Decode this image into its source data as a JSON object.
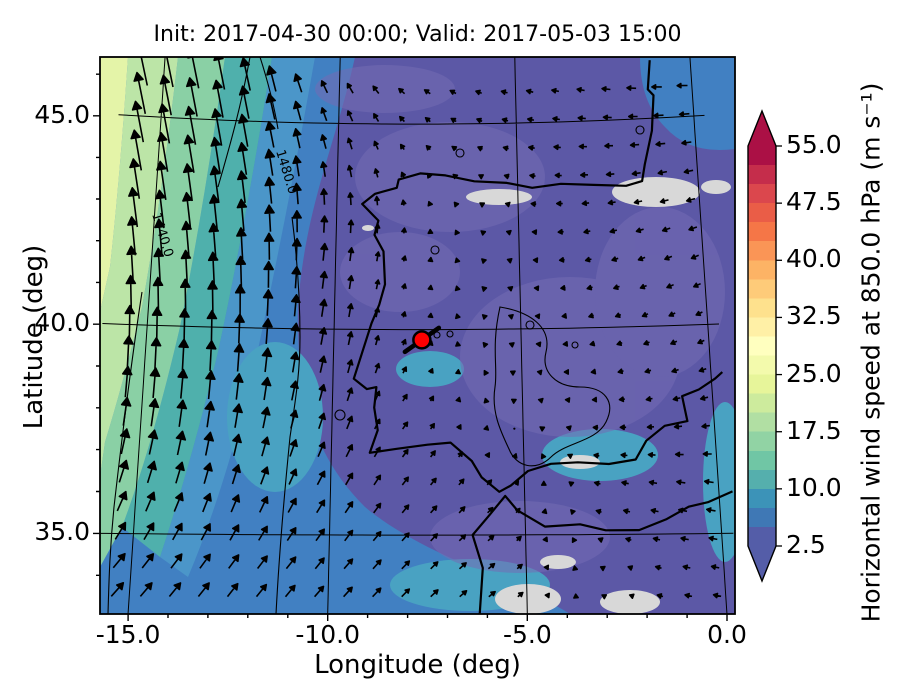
{
  "title": "Init: 2017-04-30 00:00; Valid: 2017-05-03 15:00",
  "axes": {
    "xlabel": "Longitude (deg)",
    "ylabel": "Latitude (deg)",
    "x_tick_labels": [
      "-15.0",
      "-10.0",
      "-5.0",
      "0.0"
    ],
    "x_tick_values": [
      -15.0,
      -10.0,
      -5.0,
      0.0
    ],
    "y_tick_labels": [
      "45.0",
      "40.0",
      "35.0"
    ],
    "y_tick_values": [
      45.0,
      40.0,
      35.0
    ]
  },
  "colorbar": {
    "label": "Horizontal wind speed at 850.0 hPa (m s⁻¹)",
    "tick_labels": [
      "55.0",
      "47.5",
      "40.0",
      "32.5",
      "25.0",
      "17.5",
      "10.0",
      "2.5"
    ],
    "tick_values": [
      55.0,
      47.5,
      40.0,
      32.5,
      25.0,
      17.5,
      10.0,
      2.5
    ],
    "min": 2.5,
    "max": 55.0,
    "palette": [
      "#5e4fa2",
      "#3288bd",
      "#66c2a5",
      "#abdda4",
      "#e6f598",
      "#ffffbf",
      "#fee08b",
      "#fdae61",
      "#f46d43",
      "#d53e4f",
      "#9e0142"
    ]
  },
  "map": {
    "contour_labels": [
      "1440.0",
      "1480.0"
    ],
    "marker": {
      "lon": -7.65,
      "lat": 39.75,
      "color": "#ff0000"
    },
    "colors": {
      "base": "#5c58a6",
      "slate_light": "#746cb4",
      "blue": "#4180c2",
      "blue_light": "#4b96c9",
      "teal": "#4fb0ac",
      "teal_blue": "#49a2c2",
      "green": "#8ad0a5",
      "green_pale": "#bce5a7",
      "yellow_pale": "#e4f4a8",
      "grey": "#d8d8d8",
      "line": "#000000",
      "marker_red": "#ff0000"
    }
  },
  "chart_data": {
    "type": "heatmap",
    "title": "Init: 2017-04-30 00:00; Valid: 2017-05-03 15:00",
    "xlabel": "Longitude (deg)",
    "ylabel": "Latitude (deg)",
    "xlim": [
      -15.7,
      0.2
    ],
    "ylim": [
      33.1,
      46.3
    ],
    "x_ticks": [
      -15.0,
      -10.0,
      -5.0,
      0.0
    ],
    "y_ticks": [
      35.0,
      40.0,
      45.0
    ],
    "colorbar_label": "Horizontal wind speed at 850.0 hPa (m s⁻¹)",
    "colorbar_ticks": [
      2.5,
      10.0,
      17.5,
      25.0,
      32.5,
      40.0,
      47.5,
      55.0
    ],
    "speed_levels_step": 2.5,
    "geopotential_contour_labels": [
      1440.0,
      1480.0
    ],
    "marker_point": {
      "lon": -7.65,
      "lat": 39.75
    },
    "wind_grid": {
      "units": "m s⁻¹",
      "lons": [
        -15.5,
        -13.0,
        -10.5,
        -8.0,
        -5.5,
        -3.0,
        -0.5
      ],
      "lats": [
        34.0,
        36.0,
        38.0,
        40.0,
        42.0,
        44.0,
        46.0
      ],
      "u": [
        [
          8,
          7,
          6,
          5,
          4,
          -2,
          -5
        ],
        [
          5,
          4,
          5,
          4,
          3,
          -4,
          -6
        ],
        [
          2,
          2,
          3,
          3,
          -1,
          -3,
          -5
        ],
        [
          0,
          0,
          2,
          1,
          -2,
          -3,
          -4
        ],
        [
          -3,
          -2,
          1,
          1,
          -2,
          -4,
          -5
        ],
        [
          -5,
          -4,
          -2,
          -2,
          -3,
          -5,
          -6
        ],
        [
          -6,
          -5,
          -4,
          -4,
          -4,
          -5,
          -7
        ]
      ],
      "v": [
        [
          9,
          9,
          7,
          5,
          3,
          1,
          1
        ],
        [
          14,
          13,
          9,
          5,
          3,
          1,
          1
        ],
        [
          20,
          18,
          11,
          4,
          1,
          0,
          -1
        ],
        [
          24,
          22,
          12,
          3,
          1,
          -1,
          -2
        ],
        [
          26,
          23,
          12,
          3,
          1,
          -1,
          -2
        ],
        [
          27,
          24,
          10,
          3,
          1,
          0,
          -1
        ],
        [
          28,
          25,
          8,
          3,
          1,
          1,
          0
        ]
      ]
    }
  }
}
